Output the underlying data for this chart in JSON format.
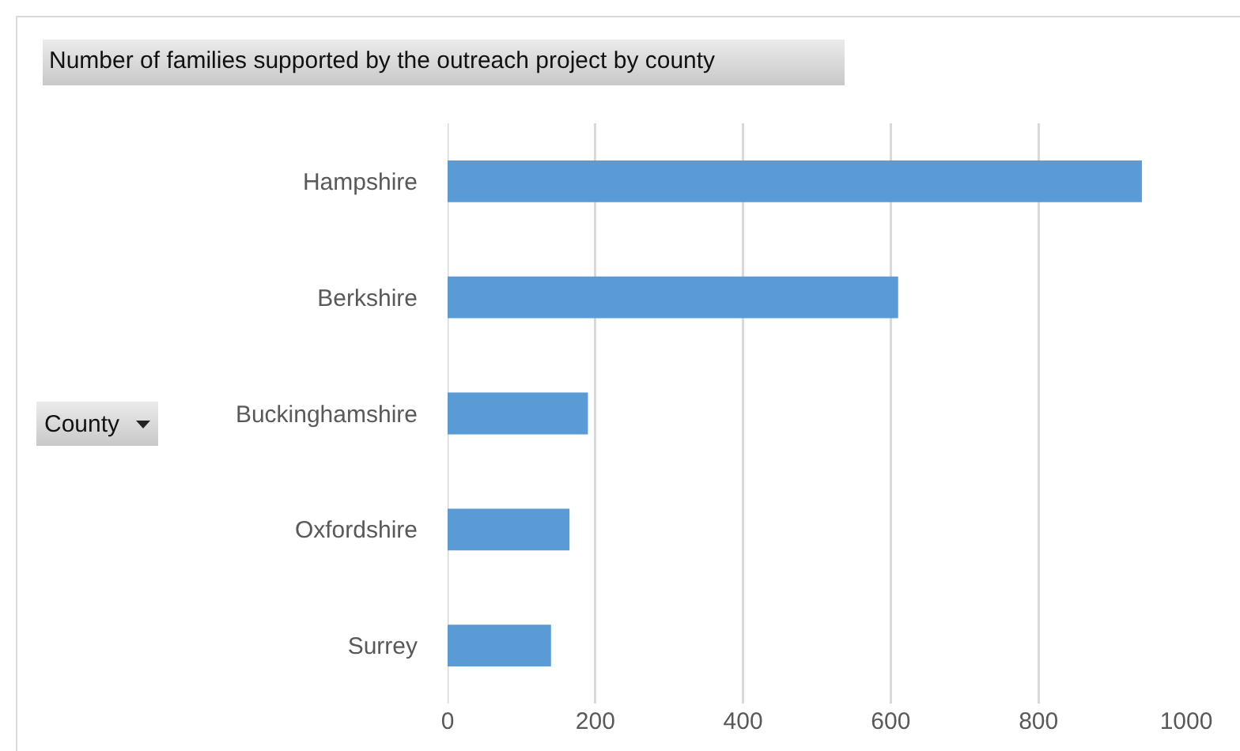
{
  "chart_data": {
    "type": "bar",
    "orientation": "horizontal",
    "title": "Number of families supported by the outreach project by county",
    "ylabel": "County",
    "categories": [
      "Hampshire",
      "Berkshire",
      "Buckinghamshire",
      "Oxfordshire",
      "Surrey"
    ],
    "values": [
      940,
      610,
      190,
      165,
      140
    ],
    "color": "#5b9bd5",
    "xlim": [
      0,
      1000
    ],
    "xticks": [
      0,
      200,
      400,
      600,
      800,
      1000
    ],
    "grid": "x"
  }
}
